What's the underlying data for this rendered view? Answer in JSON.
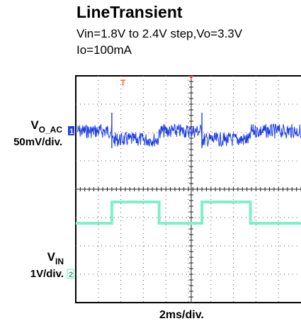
{
  "title": "LineTransient",
  "subtitle_line1": "Vin=1.8V to 2.4V step,Vo=3.3V",
  "subtitle_line2": "Io=100mA",
  "ch1": {
    "symbol": "V",
    "subscript": "O_AC",
    "scale": "50mV/div.",
    "marker": "1",
    "color": "#1e3fe6"
  },
  "ch2": {
    "symbol": "V",
    "subscript": "IN",
    "scale": "1V/div.",
    "marker": "2",
    "color": "#7ff0c8"
  },
  "trigger_marker": "T",
  "x_label": "2ms/div.",
  "chart_data": {
    "type": "line",
    "title": "LineTransient",
    "subtitle": "Vin=1.8V to 2.4V step,Vo=3.3V Io=100mA",
    "time_per_div_ms": 2,
    "divisions_x": 10,
    "divisions_y": 8,
    "series": [
      {
        "name": "VO_AC",
        "scale": "50mV/div.",
        "x_ms": [
          0,
          3.2,
          3.2,
          7.4,
          7.4,
          11.2,
          11.2,
          15.5,
          15.5,
          20
        ],
        "y_div": [
          0,
          0,
          -0.3,
          -0.3,
          0,
          0,
          -0.3,
          -0.3,
          0,
          0
        ],
        "spikes_ms": [
          3.2,
          11.2
        ],
        "noise_pp_div": 0.5
      },
      {
        "name": "VIN",
        "scale": "1V/div.",
        "x_ms": [
          0,
          3.2,
          3.2,
          7.4,
          7.4,
          11.2,
          11.2,
          15.5,
          15.5,
          20
        ],
        "y_v": [
          1.8,
          1.8,
          2.4,
          2.4,
          1.8,
          1.8,
          2.4,
          2.4,
          1.8,
          1.8
        ]
      }
    ]
  }
}
